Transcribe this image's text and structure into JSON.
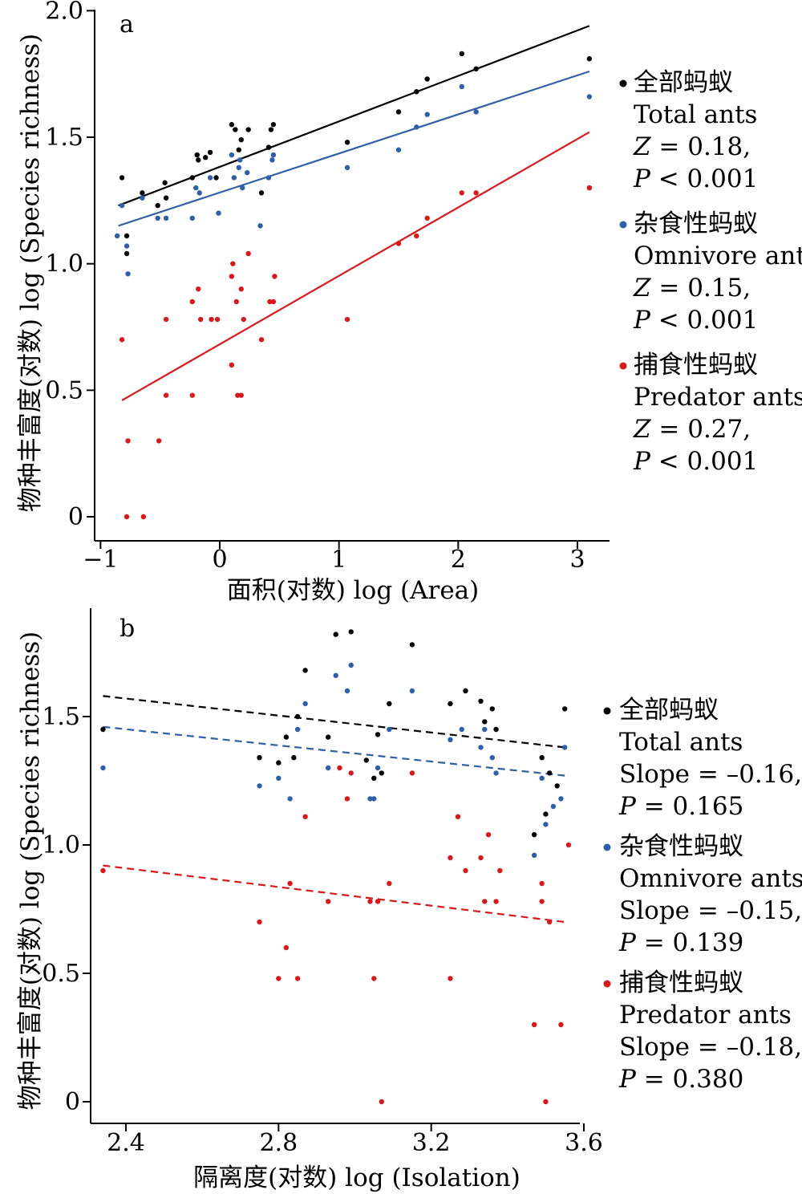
{
  "chart_data": [
    {
      "type": "scatter",
      "panel_letter": "a",
      "xlabel": "面积(对数) log (Area)",
      "ylabel": "物种丰富度(对数) log (Species richness)",
      "xlim": [
        -1.07,
        3.27
      ],
      "ylim": [
        -0.1,
        2.03
      ],
      "x_ticks": [
        -1,
        0,
        1,
        2,
        3
      ],
      "x_tick_labels": [
        "−1",
        "0",
        "1",
        "2",
        "3"
      ],
      "y_ticks": [
        0,
        0.5,
        1.0,
        1.5,
        2.0
      ],
      "y_tick_labels": [
        "0",
        "0.5",
        "1.0",
        "1.5",
        "2.0"
      ],
      "legend_position": "right",
      "series": [
        {
          "name": "全部蚂蚁",
          "name_en": "Total ants",
          "stat1": "Z = 0.18,",
          "stat2": "P < 0.001",
          "color": "#000000",
          "line_style": "solid",
          "fit": {
            "x": [
              -0.85,
              3.1
            ],
            "y": [
              1.23,
              1.94
            ]
          },
          "points": [
            [
              -0.82,
              1.34
            ],
            [
              -0.78,
              1.11
            ],
            [
              -0.78,
              1.04
            ],
            [
              -0.65,
              1.28
            ],
            [
              -0.52,
              1.23
            ],
            [
              -0.46,
              1.32
            ],
            [
              -0.45,
              1.26
            ],
            [
              -0.23,
              1.34
            ],
            [
              -0.19,
              1.43
            ],
            [
              -0.18,
              1.41
            ],
            [
              -0.12,
              1.42
            ],
            [
              -0.08,
              1.44
            ],
            [
              -0.03,
              1.34
            ],
            [
              0.1,
              1.55
            ],
            [
              0.13,
              1.53
            ],
            [
              0.18,
              1.49
            ],
            [
              0.16,
              1.45
            ],
            [
              0.24,
              1.53
            ],
            [
              0.45,
              1.55
            ],
            [
              0.43,
              1.53
            ],
            [
              0.35,
              1.28
            ],
            [
              0.41,
              1.46
            ],
            [
              1.07,
              1.48
            ],
            [
              1.5,
              1.6
            ],
            [
              1.65,
              1.68
            ],
            [
              1.74,
              1.73
            ],
            [
              2.03,
              1.83
            ],
            [
              2.15,
              1.77
            ],
            [
              3.1,
              1.81
            ]
          ]
        },
        {
          "name": "杂食性蚂蚁",
          "name_en": "Omnivore ants",
          "stat1": "Z = 0.15,",
          "stat2": "P < 0.001",
          "color": "#2f5fa8",
          "line_style": "solid",
          "fit": {
            "x": [
              -0.85,
              3.1
            ],
            "y": [
              1.15,
              1.76
            ]
          },
          "points": [
            [
              -0.86,
              1.11
            ],
            [
              -0.82,
              1.23
            ],
            [
              -0.78,
              1.07
            ],
            [
              -0.77,
              0.96
            ],
            [
              -0.65,
              1.26
            ],
            [
              -0.52,
              1.18
            ],
            [
              -0.45,
              1.18
            ],
            [
              -0.23,
              1.18
            ],
            [
              -0.2,
              1.3
            ],
            [
              -0.17,
              1.28
            ],
            [
              -0.08,
              1.34
            ],
            [
              -0.01,
              1.2
            ],
            [
              0.1,
              1.43
            ],
            [
              0.12,
              1.34
            ],
            [
              0.16,
              1.38
            ],
            [
              0.17,
              1.41
            ],
            [
              0.19,
              1.3
            ],
            [
              0.23,
              1.36
            ],
            [
              0.34,
              1.15
            ],
            [
              0.44,
              1.41
            ],
            [
              0.45,
              1.43
            ],
            [
              0.41,
              1.34
            ],
            [
              1.07,
              1.38
            ],
            [
              1.5,
              1.45
            ],
            [
              1.65,
              1.54
            ],
            [
              1.74,
              1.59
            ],
            [
              2.03,
              1.7
            ],
            [
              2.15,
              1.6
            ],
            [
              3.1,
              1.66
            ]
          ]
        },
        {
          "name": "捕食性蚂蚁",
          "name_en": "Predator ants",
          "stat1": "Z = 0.27,",
          "stat2": "P < 0.001",
          "color": "#d7191c",
          "line_style": "solid",
          "fit": {
            "x": [
              -0.82,
              3.1
            ],
            "y": [
              0.46,
              1.52
            ]
          },
          "points": [
            [
              -0.82,
              0.7
            ],
            [
              -0.77,
              0.3
            ],
            [
              -0.78,
              0.0
            ],
            [
              -0.64,
              0.0
            ],
            [
              -0.51,
              0.3
            ],
            [
              -0.45,
              0.78
            ],
            [
              -0.45,
              0.48
            ],
            [
              -0.23,
              0.85
            ],
            [
              -0.23,
              0.48
            ],
            [
              -0.18,
              0.9
            ],
            [
              -0.16,
              0.78
            ],
            [
              -0.07,
              0.78
            ],
            [
              -0.02,
              0.78
            ],
            [
              0.1,
              0.6
            ],
            [
              0.1,
              0.95
            ],
            [
              0.11,
              1.0
            ],
            [
              0.14,
              0.85
            ],
            [
              0.15,
              0.48
            ],
            [
              0.18,
              0.48
            ],
            [
              0.18,
              0.9
            ],
            [
              0.2,
              0.78
            ],
            [
              0.24,
              1.04
            ],
            [
              0.35,
              0.7
            ],
            [
              0.42,
              0.85
            ],
            [
              0.45,
              0.85
            ],
            [
              0.46,
              0.95
            ],
            [
              1.07,
              0.78
            ],
            [
              1.5,
              1.08
            ],
            [
              1.65,
              1.11
            ],
            [
              1.74,
              1.18
            ],
            [
              2.03,
              1.28
            ],
            [
              2.15,
              1.28
            ],
            [
              3.1,
              1.3
            ]
          ]
        }
      ]
    },
    {
      "type": "scatter",
      "panel_letter": "b",
      "xlabel": "隔离度(对数) log (Isolation)",
      "ylabel": "物种丰富度(对数) log (Species richness)",
      "xlim": [
        2.33,
        3.62
      ],
      "ylim": [
        -0.07,
        1.91
      ],
      "x_ticks": [
        2.4,
        2.8,
        3.2,
        3.6
      ],
      "x_tick_labels": [
        "2.4",
        "2.8",
        "3.2",
        "3.6"
      ],
      "y_ticks": [
        0,
        0.5,
        1.0,
        1.5
      ],
      "y_tick_labels": [
        "0",
        "0.5",
        "1.0",
        "1.5"
      ],
      "legend_position": "right",
      "series": [
        {
          "name": "全部蚂蚁",
          "name_en": "Total ants",
          "stat1": "Slope = –0.16,",
          "stat2": "P = 0.165",
          "color": "#000000",
          "line_style": "dashed",
          "fit": {
            "x": [
              2.34,
              3.55
            ],
            "y": [
              1.58,
              1.38
            ]
          },
          "points": [
            [
              2.34,
              1.45
            ],
            [
              2.75,
              1.34
            ],
            [
              2.8,
              1.32
            ],
            [
              2.82,
              1.42
            ],
            [
              2.84,
              1.34
            ],
            [
              2.85,
              1.5
            ],
            [
              2.87,
              1.68
            ],
            [
              2.93,
              1.42
            ],
            [
              2.95,
              1.82
            ],
            [
              2.99,
              1.83
            ],
            [
              3.03,
              1.33
            ],
            [
              3.05,
              1.26
            ],
            [
              3.06,
              1.43
            ],
            [
              3.07,
              1.28
            ],
            [
              3.09,
              1.55
            ],
            [
              3.15,
              1.78
            ],
            [
              3.25,
              1.55
            ],
            [
              3.29,
              1.6
            ],
            [
              3.33,
              1.56
            ],
            [
              3.34,
              1.48
            ],
            [
              3.36,
              1.53
            ],
            [
              3.37,
              1.45
            ],
            [
              3.47,
              1.04
            ],
            [
              3.49,
              1.34
            ],
            [
              3.5,
              1.12
            ],
            [
              3.51,
              1.28
            ],
            [
              3.53,
              1.23
            ],
            [
              3.55,
              1.53
            ]
          ]
        },
        {
          "name": "杂食性蚂蚁",
          "name_en": "Omnivore ants",
          "stat1": "Slope = –0.15,",
          "stat2": "P = 0.139",
          "color": "#2f5fa8",
          "line_style": "dashed",
          "fit": {
            "x": [
              2.34,
              3.55
            ],
            "y": [
              1.46,
              1.27
            ]
          },
          "points": [
            [
              2.34,
              1.3
            ],
            [
              2.75,
              1.23
            ],
            [
              2.8,
              1.26
            ],
            [
              2.83,
              1.18
            ],
            [
              2.85,
              1.45
            ],
            [
              2.87,
              1.55
            ],
            [
              2.93,
              1.3
            ],
            [
              2.95,
              1.66
            ],
            [
              2.98,
              1.6
            ],
            [
              2.99,
              1.7
            ],
            [
              3.04,
              1.18
            ],
            [
              3.05,
              1.18
            ],
            [
              3.06,
              1.3
            ],
            [
              3.09,
              1.45
            ],
            [
              3.15,
              1.6
            ],
            [
              3.25,
              1.41
            ],
            [
              3.28,
              1.45
            ],
            [
              3.33,
              1.38
            ],
            [
              3.34,
              1.45
            ],
            [
              3.36,
              1.34
            ],
            [
              3.37,
              1.28
            ],
            [
              3.47,
              0.96
            ],
            [
              3.49,
              1.26
            ],
            [
              3.5,
              1.08
            ],
            [
              3.52,
              1.15
            ],
            [
              3.54,
              1.18
            ],
            [
              3.55,
              1.38
            ]
          ]
        },
        {
          "name": "捕食性蚂蚁",
          "name_en": "Predator ants",
          "stat1": "Slope = –0.18,",
          "stat2": "P = 0.380",
          "color": "#d7191c",
          "line_style": "dashed",
          "fit": {
            "x": [
              2.34,
              3.55
            ],
            "y": [
              0.92,
              0.7
            ]
          },
          "points": [
            [
              2.34,
              0.9
            ],
            [
              2.75,
              0.7
            ],
            [
              2.8,
              0.48
            ],
            [
              2.82,
              0.6
            ],
            [
              2.83,
              0.85
            ],
            [
              2.85,
              0.48
            ],
            [
              2.87,
              1.11
            ],
            [
              2.93,
              0.78
            ],
            [
              2.96,
              1.3
            ],
            [
              2.98,
              1.18
            ],
            [
              2.99,
              1.28
            ],
            [
              3.04,
              0.78
            ],
            [
              3.05,
              0.48
            ],
            [
              3.06,
              0.78
            ],
            [
              3.07,
              0.0
            ],
            [
              3.09,
              0.85
            ],
            [
              3.15,
              1.28
            ],
            [
              3.25,
              0.48
            ],
            [
              3.25,
              0.95
            ],
            [
              3.27,
              1.11
            ],
            [
              3.29,
              0.9
            ],
            [
              3.33,
              0.95
            ],
            [
              3.34,
              0.78
            ],
            [
              3.35,
              1.04
            ],
            [
              3.37,
              0.78
            ],
            [
              3.38,
              0.9
            ],
            [
              3.47,
              0.3
            ],
            [
              3.49,
              0.85
            ],
            [
              3.49,
              0.78
            ],
            [
              3.5,
              0.0
            ],
            [
              3.51,
              0.7
            ],
            [
              3.54,
              0.3
            ],
            [
              3.56,
              1.0
            ]
          ]
        }
      ]
    }
  ]
}
